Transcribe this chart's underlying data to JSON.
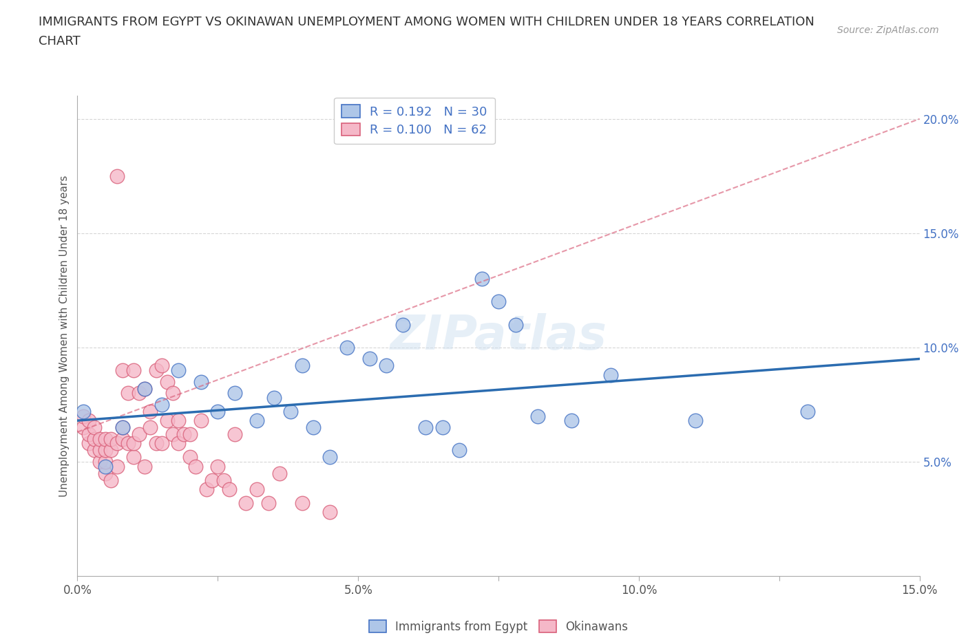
{
  "title_line1": "IMMIGRANTS FROM EGYPT VS OKINAWAN UNEMPLOYMENT AMONG WOMEN WITH CHILDREN UNDER 18 YEARS CORRELATION",
  "title_line2": "CHART",
  "source": "Source: ZipAtlas.com",
  "ylabel": "Unemployment Among Women with Children Under 18 years",
  "xlim": [
    0.0,
    0.15
  ],
  "ylim": [
    0.0,
    0.21
  ],
  "xticks": [
    0.0,
    0.025,
    0.05,
    0.075,
    0.1,
    0.125,
    0.15
  ],
  "xticklabels": [
    "0.0%",
    "",
    "5.0%",
    "",
    "10.0%",
    "",
    "15.0%"
  ],
  "yticks": [
    0.05,
    0.1,
    0.15,
    0.2
  ],
  "yticklabels": [
    "5.0%",
    "10.0%",
    "15.0%",
    "20.0%"
  ],
  "egypt_color": "#aec6e8",
  "egypt_edge": "#4472c4",
  "okinawa_color": "#f5b8c8",
  "okinawa_edge": "#d9607a",
  "egypt_R": 0.192,
  "egypt_N": 30,
  "okinawa_R": 0.1,
  "okinawa_N": 62,
  "egypt_line_color": "#2b6cb0",
  "okinawa_line_color": "#d9607a",
  "egypt_x": [
    0.001,
    0.005,
    0.008,
    0.012,
    0.015,
    0.018,
    0.022,
    0.025,
    0.028,
    0.032,
    0.035,
    0.038,
    0.04,
    0.042,
    0.045,
    0.048,
    0.052,
    0.055,
    0.058,
    0.062,
    0.065,
    0.068,
    0.072,
    0.075,
    0.078,
    0.082,
    0.088,
    0.095,
    0.11,
    0.13
  ],
  "egypt_y": [
    0.072,
    0.048,
    0.065,
    0.082,
    0.075,
    0.09,
    0.085,
    0.072,
    0.08,
    0.068,
    0.078,
    0.072,
    0.092,
    0.065,
    0.052,
    0.1,
    0.095,
    0.092,
    0.11,
    0.065,
    0.065,
    0.055,
    0.13,
    0.12,
    0.11,
    0.07,
    0.068,
    0.088,
    0.068,
    0.072
  ],
  "okinawa_x": [
    0.001,
    0.001,
    0.002,
    0.002,
    0.002,
    0.003,
    0.003,
    0.003,
    0.004,
    0.004,
    0.004,
    0.005,
    0.005,
    0.005,
    0.005,
    0.006,
    0.006,
    0.006,
    0.007,
    0.007,
    0.007,
    0.008,
    0.008,
    0.008,
    0.009,
    0.009,
    0.01,
    0.01,
    0.01,
    0.011,
    0.011,
    0.012,
    0.012,
    0.013,
    0.013,
    0.014,
    0.014,
    0.015,
    0.015,
    0.016,
    0.016,
    0.017,
    0.017,
    0.018,
    0.018,
    0.019,
    0.02,
    0.02,
    0.021,
    0.022,
    0.023,
    0.024,
    0.025,
    0.026,
    0.027,
    0.028,
    0.03,
    0.032,
    0.034,
    0.036,
    0.04,
    0.045
  ],
  "okinawa_y": [
    0.065,
    0.07,
    0.058,
    0.062,
    0.068,
    0.055,
    0.06,
    0.065,
    0.05,
    0.055,
    0.06,
    0.045,
    0.05,
    0.055,
    0.06,
    0.042,
    0.055,
    0.06,
    0.048,
    0.058,
    0.175,
    0.06,
    0.065,
    0.09,
    0.058,
    0.08,
    0.052,
    0.058,
    0.09,
    0.062,
    0.08,
    0.048,
    0.082,
    0.065,
    0.072,
    0.058,
    0.09,
    0.058,
    0.092,
    0.068,
    0.085,
    0.062,
    0.08,
    0.058,
    0.068,
    0.062,
    0.052,
    0.062,
    0.048,
    0.068,
    0.038,
    0.042,
    0.048,
    0.042,
    0.038,
    0.062,
    0.032,
    0.038,
    0.032,
    0.045,
    0.032,
    0.028
  ]
}
